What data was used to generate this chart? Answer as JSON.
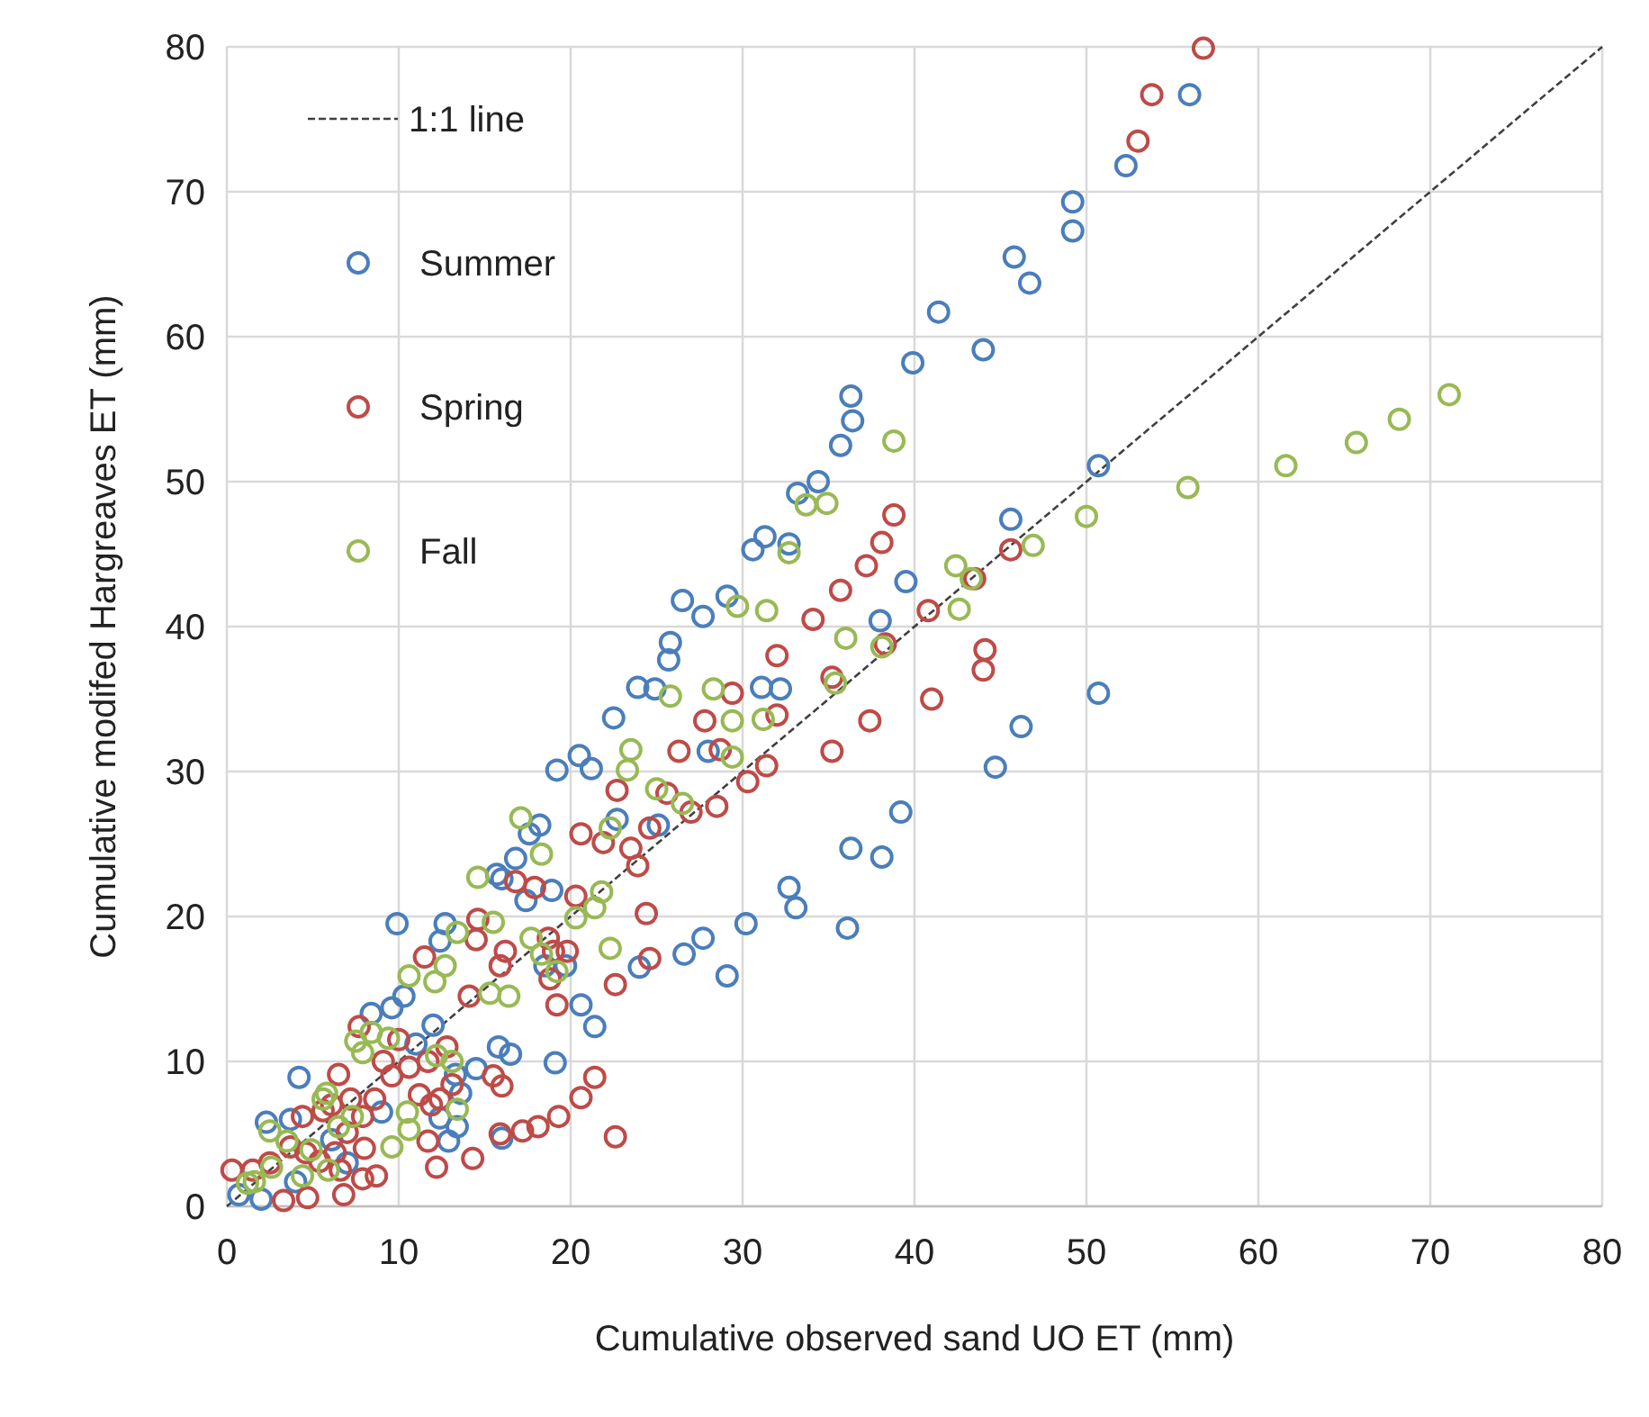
{
  "chart_data": {
    "type": "scatter",
    "xlabel": "Cumulative observed sand UO ET (mm)",
    "ylabel": "Cumulative modifed Hargreaves ET (mm)",
    "xlim": [
      0,
      80
    ],
    "ylim": [
      0,
      80
    ],
    "xticks": [
      0,
      10,
      20,
      30,
      40,
      50,
      60,
      70,
      80
    ],
    "yticks": [
      0,
      10,
      20,
      30,
      40,
      50,
      60,
      70,
      80
    ],
    "grid": true,
    "legend": "top left",
    "marker": "circle",
    "series": [
      {
        "name": "1:1 line",
        "type": "line",
        "color": "#404040",
        "line_style": "dashed",
        "marker": "none",
        "x": [
          0,
          80
        ],
        "values": [
          0,
          80
        ]
      },
      {
        "name": "Summer",
        "color": "#4a7ebb",
        "x": [
          56.0,
          52.3,
          49.2,
          49.2,
          45.8,
          46.7,
          41.4,
          44.0,
          39.9,
          36.3,
          36.4,
          35.7,
          50.7,
          33.2,
          34.4,
          45.6,
          31.3,
          30.6,
          32.7,
          39.5,
          29.1,
          26.5,
          27.7,
          38.0,
          31.1,
          32.2,
          50.7,
          46.2,
          28.0,
          44.7,
          39.2,
          36.3,
          38.1,
          32.7,
          33.1,
          30.2,
          36.1,
          29.1,
          25.8,
          25.7,
          23.9,
          24.9,
          22.5,
          19.2,
          20.5,
          21.2,
          18.2,
          17.6,
          22.7,
          25.1,
          16.8,
          15.7,
          17.4,
          18.9,
          27.7,
          26.6,
          24.0,
          9.9,
          12.7,
          12.4,
          16.0,
          18.5,
          19.7,
          20.6,
          21.4,
          19.1,
          16.0,
          10.3,
          4.2,
          0.7,
          2.3,
          3.7,
          8.4,
          9.6,
          11.0,
          13.3,
          13.6,
          14.5,
          12.4,
          13.4,
          12.9,
          4.0,
          6.1,
          15.8,
          16.5,
          7.0,
          9.0,
          2.0,
          12.0
        ],
        "values": [
          76.7,
          71.8,
          69.3,
          67.3,
          65.5,
          63.7,
          61.7,
          59.1,
          58.2,
          55.9,
          54.2,
          52.5,
          51.1,
          49.2,
          50.0,
          47.4,
          46.2,
          45.3,
          45.7,
          43.1,
          42.1,
          41.8,
          40.7,
          40.4,
          35.8,
          35.7,
          35.4,
          33.1,
          31.4,
          30.3,
          27.2,
          24.7,
          24.1,
          22.0,
          20.6,
          19.5,
          19.2,
          15.9,
          38.9,
          37.7,
          35.8,
          35.7,
          33.7,
          30.1,
          31.1,
          30.2,
          26.3,
          25.7,
          26.7,
          26.3,
          24.0,
          22.9,
          21.1,
          21.8,
          18.5,
          17.4,
          16.5,
          19.5,
          19.5,
          18.3,
          22.6,
          16.6,
          16.6,
          13.9,
          12.4,
          9.9,
          4.7,
          14.5,
          8.9,
          0.8,
          5.8,
          6.0,
          13.3,
          13.7,
          11.2,
          9.1,
          7.8,
          9.5,
          6.1,
          5.5,
          4.5,
          1.7,
          4.6,
          11.0,
          10.5,
          3.0,
          6.5,
          0.5,
          12.5
        ]
      },
      {
        "name": "Spring",
        "color": "#be4b48",
        "x": [
          56.8,
          53.8,
          53.0,
          38.8,
          45.6,
          38.1,
          37.2,
          43.5,
          35.7,
          34.1,
          40.8,
          38.3,
          32.0,
          44.1,
          44.0,
          29.4,
          35.2,
          41.0,
          27.8,
          32.0,
          37.4,
          26.3,
          28.7,
          31.4,
          35.2,
          30.3,
          28.5,
          27.0,
          25.6,
          22.7,
          20.6,
          21.9,
          24.6,
          23.5,
          23.9,
          16.8,
          17.9,
          20.3,
          24.4,
          24.6,
          22.6,
          14.6,
          11.5,
          19.8,
          18.7,
          18.8,
          14.5,
          14.1,
          16.2,
          15.9,
          19.0,
          19.2,
          21.4,
          20.6,
          19.3,
          18.1,
          17.2,
          15.9,
          22.6,
          12.2,
          14.3,
          0.3,
          4.4,
          5.6,
          6.5,
          7.7,
          9.1,
          9.6,
          10.6,
          11.7,
          11.2,
          11.9,
          12.4,
          13.1,
          11.7,
          8.6,
          7.9,
          7.0,
          6.3,
          5.4,
          6.6,
          3.3,
          4.7,
          6.8,
          7.9,
          8.7,
          6.1,
          7.2,
          4.6,
          3.7,
          10.0,
          12.8,
          1.5,
          2.5,
          8.0,
          15.5,
          16.0
        ],
        "values": [
          79.9,
          76.7,
          73.5,
          47.7,
          45.3,
          45.8,
          44.2,
          43.3,
          42.5,
          40.5,
          41.1,
          38.8,
          38.0,
          38.4,
          37.0,
          35.4,
          36.5,
          35.0,
          33.5,
          33.9,
          33.5,
          31.4,
          31.5,
          30.4,
          31.4,
          29.3,
          27.6,
          27.2,
          28.5,
          28.7,
          25.7,
          25.1,
          26.1,
          24.7,
          23.5,
          22.4,
          22.0,
          21.4,
          20.2,
          17.1,
          15.3,
          19.8,
          17.2,
          17.6,
          18.5,
          15.7,
          18.4,
          14.5,
          17.6,
          16.6,
          17.6,
          13.9,
          8.9,
          7.5,
          6.2,
          5.5,
          5.2,
          5.0,
          4.8,
          2.7,
          3.3,
          2.5,
          6.2,
          6.6,
          9.1,
          12.4,
          10.0,
          9.0,
          9.6,
          10.0,
          7.7,
          7.0,
          7.4,
          8.4,
          4.5,
          7.4,
          6.2,
          5.1,
          3.7,
          3.1,
          2.5,
          0.4,
          0.6,
          0.8,
          1.9,
          2.1,
          7.0,
          7.4,
          3.7,
          4.1,
          11.5,
          11.0,
          2.5,
          3.0,
          4.0,
          9.0,
          8.3
        ]
      },
      {
        "name": "Fall",
        "color": "#98b954",
        "x": [
          71.1,
          68.2,
          65.7,
          61.6,
          55.9,
          50.0,
          38.8,
          33.7,
          34.9,
          46.9,
          32.7,
          42.4,
          43.3,
          29.7,
          31.4,
          42.6,
          36.0,
          38.1,
          28.3,
          35.4,
          29.4,
          31.2,
          29.4,
          25.8,
          23.5,
          23.3,
          25.0,
          26.5,
          17.1,
          22.3,
          18.3,
          14.6,
          21.8,
          21.4,
          20.3,
          22.3,
          13.4,
          15.5,
          10.6,
          18.3,
          17.7,
          19.2,
          12.7,
          12.1,
          15.3,
          16.4,
          1.2,
          2.5,
          5.6,
          5.8,
          7.3,
          7.5,
          7.9,
          8.4,
          9.4,
          12.2,
          13.1,
          13.4,
          9.6,
          10.6,
          4.9,
          5.9,
          4.4,
          2.6,
          1.6,
          3.5,
          6.5,
          10.5
        ],
        "values": [
          56.0,
          54.3,
          52.7,
          51.1,
          49.6,
          47.6,
          52.8,
          48.4,
          48.5,
          45.6,
          45.1,
          44.2,
          43.3,
          41.4,
          41.1,
          41.2,
          39.2,
          38.6,
          35.7,
          36.1,
          33.5,
          33.6,
          31.0,
          35.2,
          31.5,
          30.1,
          28.8,
          27.8,
          26.8,
          26.1,
          24.3,
          22.7,
          21.7,
          20.6,
          19.9,
          17.8,
          18.9,
          19.6,
          15.9,
          17.4,
          18.5,
          16.2,
          16.6,
          15.5,
          14.7,
          14.5,
          1.6,
          5.2,
          7.4,
          7.8,
          6.2,
          11.4,
          10.6,
          12.0,
          11.6,
          10.4,
          10.0,
          6.7,
          4.1,
          5.3,
          3.9,
          2.5,
          2.1,
          2.7,
          1.7,
          4.5,
          5.5,
          6.5
        ]
      }
    ]
  }
}
